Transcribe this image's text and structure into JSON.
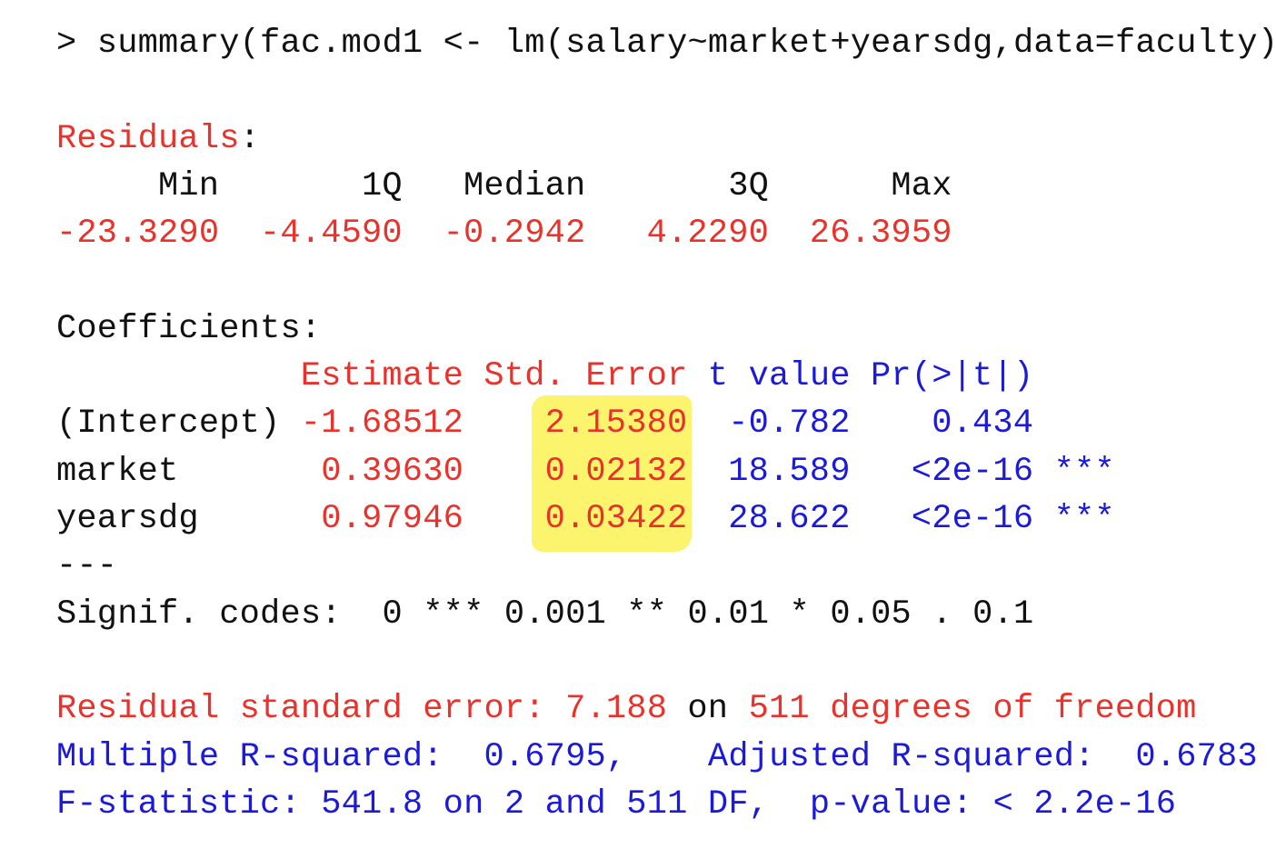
{
  "command": {
    "text": "> summary(fac.mod1 <- lm(salary~market+yearsdg,data=faculty))",
    "color": "#111111"
  },
  "residuals": {
    "title": "Residuals",
    "title_color": "#e8322b",
    "title_suffix": ":",
    "suffix_color": "#111111",
    "headers": [
      "Min",
      "1Q",
      "Median",
      "3Q",
      "Max"
    ],
    "header_color": "#111111",
    "values": [
      "-23.3290",
      "-4.4590",
      "-0.2942",
      "4.2290",
      "26.3959"
    ],
    "value_color": "#e8322b"
  },
  "coefficients": {
    "title": "Coefficients:",
    "title_color": "#111111",
    "headers": [
      {
        "text": "Estimate",
        "color": "#e8322b"
      },
      {
        "text": "Std. Error",
        "color": "#e8322b"
      },
      {
        "text": "t value",
        "color": "#1a1ad8"
      },
      {
        "text": "Pr(>|t|)",
        "color": "#1a1ad8"
      }
    ],
    "name_color": "#111111",
    "cell_colors": [
      "#e8322b",
      "#e8322b",
      "#1a1ad8",
      "#1a1ad8"
    ],
    "stars_color": "#1a1ad8",
    "rows": [
      {
        "name": "(Intercept)",
        "cells": [
          "-1.68512",
          "2.15380",
          "-0.782",
          "0.434"
        ]
      },
      {
        "name": "market",
        "cells": [
          "0.39630",
          "0.02132",
          "18.589",
          "<2e-16"
        ],
        "stars": "***"
      },
      {
        "name": "yearsdg",
        "cells": [
          "0.97946",
          "0.03422",
          "28.622",
          "<2e-16"
        ],
        "stars": "***"
      }
    ]
  },
  "separator": {
    "text": "---",
    "color": "#111111"
  },
  "signif": {
    "text": "Signif. codes:  0 *** 0.001 ** 0.01 * 0.05 . 0.1",
    "color": "#111111"
  },
  "summary": [
    [
      {
        "text": "Residual standard error: 7.188",
        "color": "#e8322b"
      },
      {
        "text": " on ",
        "color": "#111111"
      },
      {
        "text": "511 degrees of freedom",
        "color": "#e8322b"
      }
    ],
    [
      {
        "text": "Multiple R-squared:  0.6795,\tAdjusted R-squared:  0.6783",
        "color": "#1a1ad8"
      }
    ],
    [
      {
        "text": "F-statistic: 541.8 on 2 and 511 DF,  p-value: < 2.2e-16",
        "color": "#1a1ad8"
      }
    ]
  ]
}
